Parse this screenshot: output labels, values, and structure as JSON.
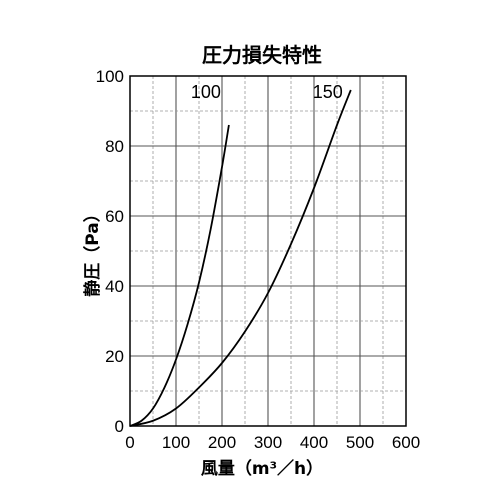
{
  "chart_data": {
    "type": "line",
    "title": "圧力損失特性",
    "xlabel": "風量（m³／h）",
    "ylabel": "静圧（Pa）",
    "xlim": [
      0,
      600
    ],
    "ylim": [
      0,
      100
    ],
    "x_ticks": [
      "0",
      "100",
      "200",
      "300",
      "400",
      "500",
      "600"
    ],
    "y_ticks": [
      "0",
      "20",
      "40",
      "60",
      "80",
      "100"
    ],
    "x_minor_step": 50,
    "y_minor_step": 10,
    "grid": true,
    "series": [
      {
        "name": "100",
        "x": [
          0,
          25,
          50,
          75,
          100,
          125,
          150,
          175,
          200,
          215
        ],
        "y": [
          0,
          1.5,
          5,
          11,
          19,
          29,
          41,
          56,
          74,
          86
        ]
      },
      {
        "name": "150",
        "x": [
          0,
          50,
          100,
          150,
          200,
          250,
          300,
          350,
          400,
          450,
          480
        ],
        "y": [
          0,
          1.5,
          5,
          11,
          18,
          27,
          38,
          52,
          68,
          86,
          96
        ]
      }
    ]
  }
}
